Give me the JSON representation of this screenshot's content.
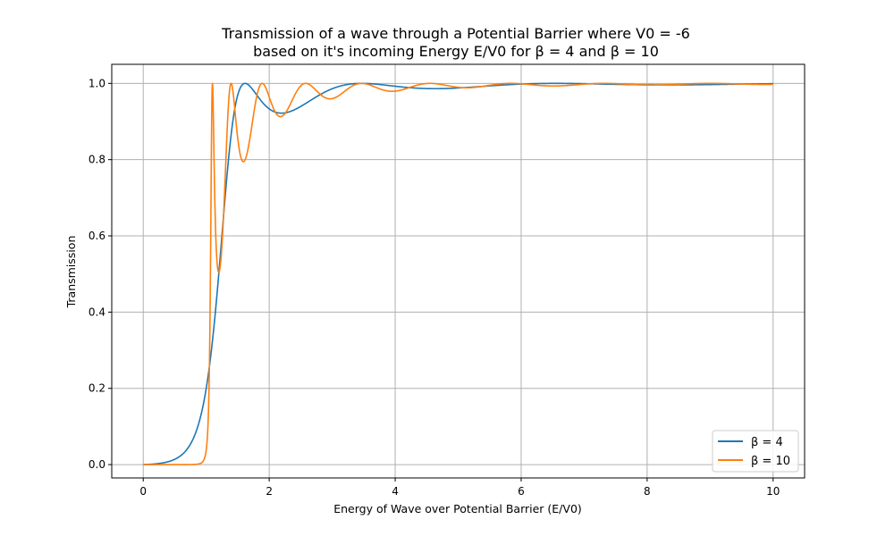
{
  "chart_data": {
    "type": "line",
    "title": "Transmission of a wave through a Potential Barrier where V0 = -6",
    "subtitle": "based on it's incoming Energy E/V0 for β = 4 and β = 10",
    "xlabel": "Energy of Wave over Potential Barrier (E/V0)",
    "ylabel": "Transmission",
    "xlim": [
      -0.5,
      10.5
    ],
    "ylim": [
      -0.035,
      1.05
    ],
    "grid": true,
    "legend_position": "lower-right",
    "x_ticks": [
      0,
      2,
      4,
      6,
      8,
      10
    ],
    "y_ticks": [
      0.0,
      0.2,
      0.4,
      0.6,
      0.8,
      1.0
    ],
    "x_tick_labels": [
      "0",
      "2",
      "4",
      "6",
      "8",
      "10"
    ],
    "y_tick_labels": [
      "0.0",
      "0.2",
      "0.4",
      "0.6",
      "0.8",
      "1.0"
    ],
    "x_range": [
      0.001,
      10
    ],
    "series": [
      {
        "name": "β = 4",
        "color": "#1f77b4",
        "beta": 4,
        "V0": -6
      },
      {
        "name": "β = 10",
        "color": "#ff7f0e",
        "beta": 10,
        "V0": -6
      }
    ]
  }
}
